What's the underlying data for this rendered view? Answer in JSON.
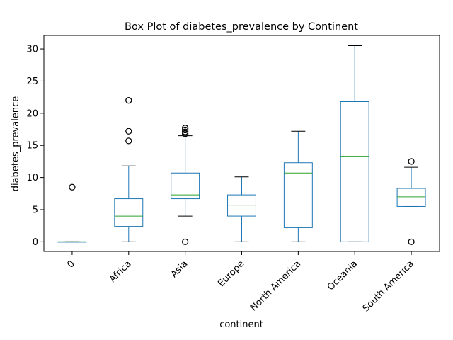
{
  "chart_data": {
    "type": "box",
    "title": "Box Plot of diabetes_prevalence by Continent",
    "xlabel": "continent",
    "ylabel": "diabetes_prevalence",
    "ylim": [
      -1.5,
      32.1
    ],
    "yticks": [
      0,
      5,
      10,
      15,
      20,
      25,
      30
    ],
    "grid": false,
    "categories": [
      "0",
      "Africa",
      "Asia",
      "Europe",
      "North America",
      "Oceania",
      "South America"
    ],
    "boxes": [
      {
        "category": "0",
        "whisker_low": 0,
        "q1": 0,
        "median": 0,
        "q3": 0,
        "whisker_high": 0,
        "outliers": [
          8.5
        ]
      },
      {
        "category": "Africa",
        "whisker_low": 0,
        "q1": 2.4,
        "median": 4.0,
        "q3": 6.7,
        "whisker_high": 11.8,
        "outliers": [
          15.7,
          17.2,
          22.0
        ]
      },
      {
        "category": "Asia",
        "whisker_low": 4.0,
        "q1": 6.7,
        "median": 7.3,
        "q3": 10.7,
        "whisker_high": 16.5,
        "outliers": [
          0,
          16.8,
          17.1,
          17.4,
          17.7
        ]
      },
      {
        "category": "Europe",
        "whisker_low": 0,
        "q1": 4.0,
        "median": 5.7,
        "q3": 7.3,
        "whisker_high": 10.1,
        "outliers": []
      },
      {
        "category": "North America",
        "whisker_low": 0,
        "q1": 2.2,
        "median": 10.7,
        "q3": 12.3,
        "whisker_high": 17.2,
        "outliers": []
      },
      {
        "category": "Oceania",
        "whisker_low": 0,
        "q1": 0,
        "median": 13.3,
        "q3": 21.8,
        "whisker_high": 30.5,
        "outliers": []
      },
      {
        "category": "South America",
        "whisker_low": 5.5,
        "q1": 5.5,
        "median": 7.0,
        "q3": 8.3,
        "whisker_high": 11.6,
        "outliers": [
          0,
          12.5
        ]
      }
    ],
    "colors": {
      "box": "#1f77b4",
      "median": "#2ca02c",
      "outlier": "#000000",
      "axes": "#000000"
    }
  }
}
